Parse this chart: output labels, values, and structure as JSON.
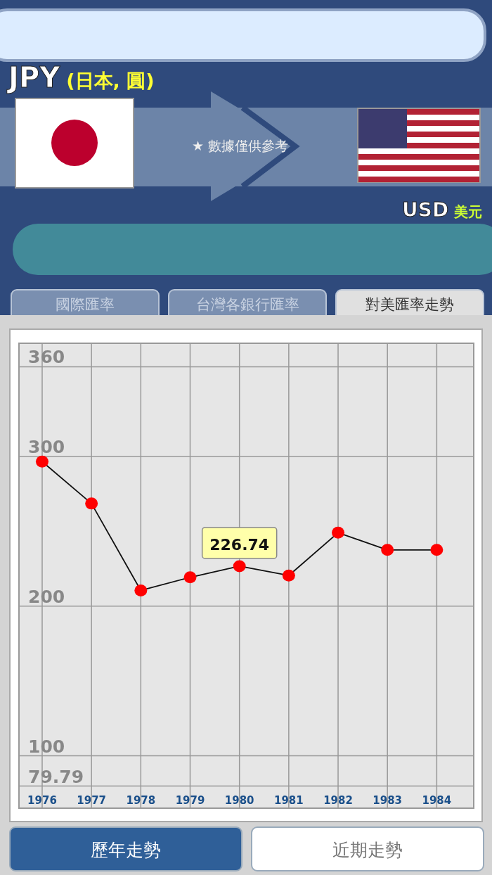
{
  "chart_data": {
    "type": "line",
    "title": "JPY",
    "subtitle": "(日本, 圓)",
    "x": [
      1976,
      1977,
      1978,
      1979,
      1980,
      1981,
      1982,
      1983,
      1984
    ],
    "series": [
      {
        "color": "#ff0000",
        "values": [
          296.6,
          268.6,
          210.5,
          219.3,
          226.74,
          220.5,
          249.1,
          237.6,
          237.6
        ]
      }
    ],
    "xlim": [
      1975.53,
      1984.75
    ],
    "ylim": [
      79.79,
      375.7
    ],
    "xticks": [
      1976,
      1977,
      1978,
      1979,
      1980,
      1981,
      1982,
      1983,
      1984
    ],
    "yticks": [
      79.79,
      100,
      200,
      300,
      360
    ],
    "grid": true,
    "marker": "circle",
    "line_style": "solid",
    "annotations": [
      "★ 數據僅供參考",
      "USD",
      "美元",
      "國際匯率",
      "台灣各銀行匯率",
      "對美匯率走勢",
      "歷年走勢",
      "近期走勢",
      {
        "text": "226.74",
        "x": 1980,
        "y": 226.74
      }
    ]
  }
}
